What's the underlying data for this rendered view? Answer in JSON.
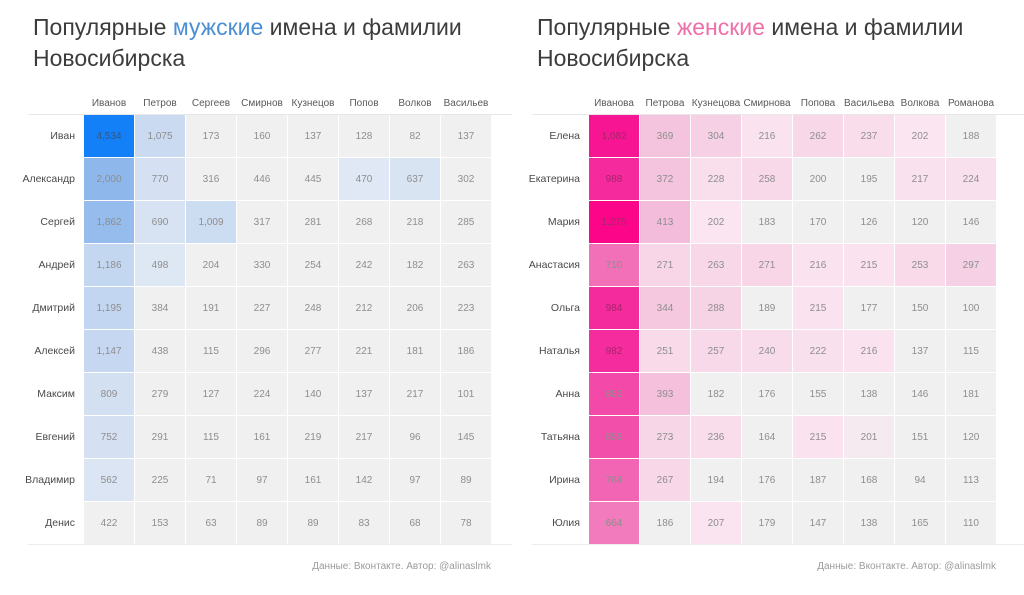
{
  "chart_data": [
    {
      "type": "heatmap",
      "title": {
        "prefix": "Популярные ",
        "highlight": "мужские",
        "suffix": " имена и фамилии",
        "line2": "Новосибирска",
        "highlight_color": "#4a8fd3"
      },
      "columns": [
        "Иванов",
        "Петров",
        "Сергеев",
        "Смирнов",
        "Кузнецов",
        "Попов",
        "Волков",
        "Васильев"
      ],
      "rows": [
        "Иван",
        "Александр",
        "Сергей",
        "Андрей",
        "Дмитрий",
        "Алексей",
        "Максим",
        "Евгений",
        "Владимир",
        "Денис"
      ],
      "values": [
        [
          4534,
          1075,
          173,
          160,
          137,
          128,
          82,
          137
        ],
        [
          2000,
          770,
          316,
          446,
          445,
          470,
          637,
          302
        ],
        [
          1862,
          690,
          1009,
          317,
          281,
          268,
          218,
          285
        ],
        [
          1186,
          498,
          204,
          330,
          254,
          242,
          182,
          263
        ],
        [
          1195,
          384,
          191,
          227,
          248,
          212,
          206,
          223
        ],
        [
          1147,
          438,
          115,
          296,
          277,
          221,
          181,
          186
        ],
        [
          809,
          279,
          127,
          224,
          140,
          137,
          217,
          101
        ],
        [
          752,
          291,
          115,
          161,
          219,
          217,
          96,
          145
        ],
        [
          562,
          225,
          71,
          97,
          161,
          142,
          97,
          89
        ],
        [
          422,
          153,
          63,
          89,
          89,
          83,
          68,
          78
        ]
      ],
      "palette": {
        "stops": [
          [
            0,
            "#f0f0f0"
          ],
          [
            0.0905,
            "#f0f0f0"
          ],
          [
            0.0907,
            "#dfe8f4"
          ],
          [
            0.105,
            "#dce6f3"
          ],
          [
            0.17,
            "#d3e0f2"
          ],
          [
            0.24,
            "#c7d9f1"
          ],
          [
            0.3,
            "#b3ccef"
          ],
          [
            0.44,
            "#8cb6ec"
          ],
          [
            0.7,
            "#4f97f0"
          ],
          [
            1,
            "#1380f8"
          ]
        ],
        "dark_label": "#38567d",
        "dark_label_threshold": 0.7
      },
      "footer": "Данные: Вконтакте. Автор: @alinaslmk"
    },
    {
      "type": "heatmap",
      "title": {
        "prefix": "Популярные ",
        "highlight": "женские",
        "suffix": " имена и фамилии",
        "line2": "Новосибирска",
        "highlight_color": "#ee6fa9"
      },
      "columns": [
        "Иванова",
        "Петрова",
        "Кузнецова",
        "Смирнова",
        "Попова",
        "Васильева",
        "Волкова",
        "Романова"
      ],
      "rows": [
        "Елена",
        "Екатерина",
        "Мария",
        "Анастасия",
        "Ольга",
        "Наталья",
        "Анна",
        "Татьяна",
        "Ирина",
        "Юлия"
      ],
      "values": [
        [
          1082,
          369,
          304,
          216,
          262,
          237,
          202,
          188
        ],
        [
          988,
          372,
          228,
          258,
          200,
          195,
          217,
          224
        ],
        [
          1275,
          413,
          202,
          183,
          170,
          126,
          120,
          146
        ],
        [
          710,
          271,
          263,
          271,
          216,
          215,
          253,
          297
        ],
        [
          984,
          344,
          288,
          189,
          215,
          177,
          150,
          100
        ],
        [
          982,
          251,
          257,
          240,
          222,
          216,
          137,
          115
        ],
        [
          882,
          393,
          182,
          176,
          155,
          138,
          146,
          181
        ],
        [
          858,
          273,
          236,
          164,
          215,
          201,
          151,
          120
        ],
        [
          764,
          267,
          194,
          176,
          187,
          168,
          94,
          113
        ],
        [
          664,
          186,
          207,
          179,
          147,
          138,
          165,
          110
        ]
      ],
      "palette": {
        "stops": [
          [
            0,
            "#f0f0f0"
          ],
          [
            0.0905,
            "#f0f0f0"
          ],
          [
            0.0907,
            "#fae5f0"
          ],
          [
            0.12,
            "#f9ddeb"
          ],
          [
            0.18,
            "#f6cfe4"
          ],
          [
            0.27,
            "#f3bcda"
          ],
          [
            0.35,
            "#f2a6cf"
          ],
          [
            0.5,
            "#f175ba"
          ],
          [
            0.6,
            "#f25cb1"
          ],
          [
            0.7,
            "#f340a4"
          ],
          [
            0.78,
            "#f5219a"
          ],
          [
            0.86,
            "#f91090"
          ],
          [
            1,
            "#fc0588"
          ]
        ],
        "dark_label": "#a7246d",
        "dark_label_threshold": 0.7
      },
      "footer": "Данные: Вконтакте. Автор: @alinaslmk"
    }
  ]
}
